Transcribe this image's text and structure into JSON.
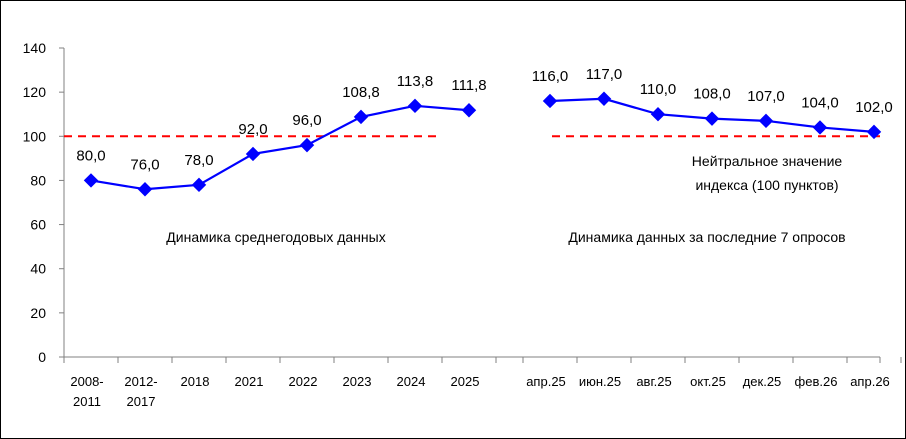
{
  "chart_data": {
    "type": "line",
    "title": "",
    "xlabel": "",
    "ylabel": "",
    "ylim": [
      0,
      140
    ],
    "yticks": [
      "0",
      "20",
      "40",
      "60",
      "80",
      "100",
      "120",
      "140"
    ],
    "grid": false,
    "legend": "none",
    "neutral_value": 100,
    "colors": {
      "series": "#0000FF",
      "marker": "#0000FF",
      "neutral_line": "#FF0000",
      "axis": "#808080"
    },
    "series": [
      {
        "categories": [
          [
            "2008-",
            "2011"
          ],
          [
            "2012-",
            "2017"
          ],
          [
            "2018"
          ],
          [
            "2021"
          ],
          [
            "2022"
          ],
          [
            "2023"
          ],
          [
            "2024"
          ],
          [
            "2025"
          ]
        ],
        "values": [
          80.0,
          76.0,
          78.0,
          92.0,
          96.0,
          108.8,
          113.8,
          111.8
        ],
        "labels": [
          "80,0",
          "76,0",
          "78,0",
          "92,0",
          "96,0",
          "108,8",
          "113,8",
          "111,8"
        ]
      },
      {
        "categories": [
          [
            "апр.25"
          ],
          [
            "июн.25"
          ],
          [
            "авг.25"
          ],
          [
            "окт.25"
          ],
          [
            "дек.25"
          ],
          [
            "фев.26"
          ],
          [
            "апр.26"
          ]
        ],
        "values": [
          116.0,
          117.0,
          110.0,
          108.0,
          107.0,
          104.0,
          102.0
        ],
        "labels": [
          "116,0",
          "117,0",
          "110,0",
          "108,0",
          "107,0",
          "104,0",
          "102,0"
        ]
      }
    ],
    "annotations": {
      "left_caption": "Динамика среднегодовых данных",
      "right_caption": "Динамика данных за последние 7 опросов",
      "neutral_caption_line1": "Нейтральное значение",
      "neutral_caption_line2": "индекса (100 пунктов)"
    }
  }
}
